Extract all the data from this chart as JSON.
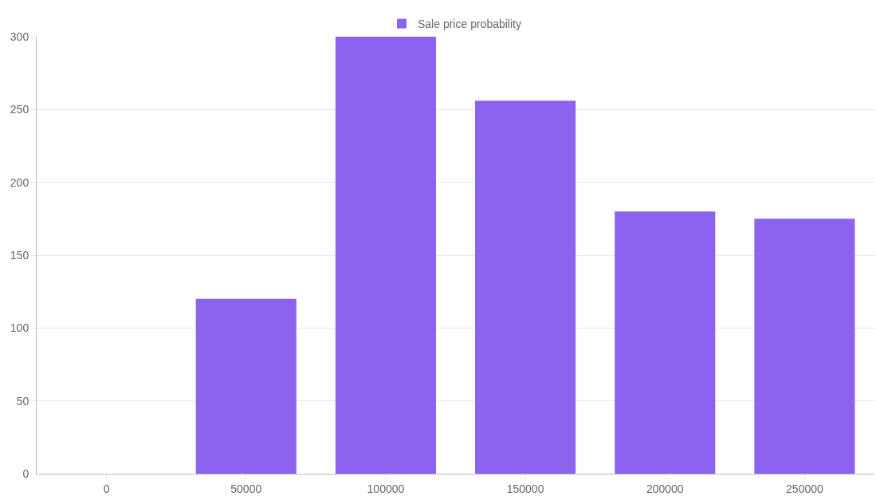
{
  "chart_data": {
    "type": "bar",
    "categories": [
      "0",
      "50000",
      "100000",
      "150000",
      "200000",
      "250000"
    ],
    "series": [
      {
        "name": "Sale price probability",
        "color": "#8c63ee",
        "values": [
          0,
          120,
          300,
          256,
          180,
          175
        ]
      }
    ],
    "ylim": [
      0,
      300
    ],
    "yticks": [
      0,
      50,
      100,
      150,
      200,
      250,
      300
    ],
    "grid": "y",
    "legend": "top"
  }
}
